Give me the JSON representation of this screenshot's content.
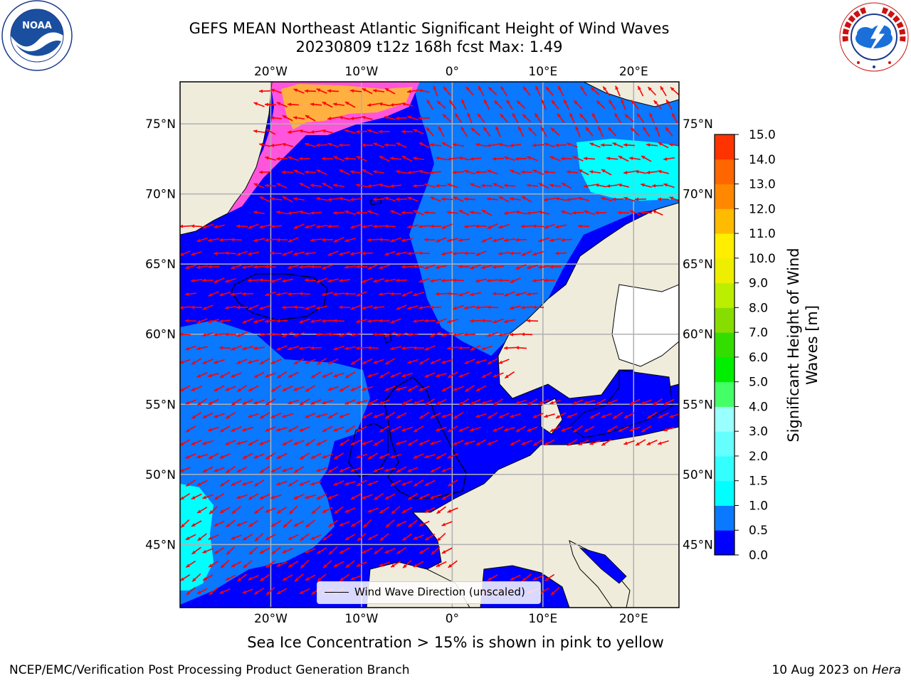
{
  "title": {
    "line1": "GEFS MEAN Northeast Atlantic Significant Height of Wind Waves",
    "line2": "20230809 t12z 168h fcst   Max: 1.49"
  },
  "logos": {
    "left": "NOAA",
    "left_ring": "NATIONAL OCEANIC AND ATMOSPHERIC ADMINISTRATION · U.S. DEPARTMENT OF COMMERCE",
    "right_ring": "NATIONAL WEATHER SERVICE"
  },
  "map": {
    "lon_range": [
      -30,
      25
    ],
    "lat_range": [
      40.5,
      78
    ],
    "lon_labels": [
      {
        "lon": -20,
        "text": "20°W"
      },
      {
        "lon": -10,
        "text": "10°W"
      },
      {
        "lon": 0,
        "text": "0°"
      },
      {
        "lon": 10,
        "text": "10°E"
      },
      {
        "lon": 20,
        "text": "20°E"
      }
    ],
    "lat_labels": [
      {
        "lat": 75,
        "text": "75°N"
      },
      {
        "lat": 70,
        "text": "70°N"
      },
      {
        "lat": 65,
        "text": "65°N"
      },
      {
        "lat": 60,
        "text": "60°N"
      },
      {
        "lat": 55,
        "text": "55°N"
      },
      {
        "lat": 50,
        "text": "50°N"
      },
      {
        "lat": 45,
        "text": "45°N"
      }
    ],
    "colors": {
      "ocean_low": "#0000ff",
      "ocean_mid": "#0a78ff",
      "ocean_cyan": "#00ffff",
      "land": "#efecdc",
      "ice_pink": "#ff55dd",
      "ice_orange": "#ffb040",
      "arrow": "#ff0000",
      "grid": "#b0b0b0"
    }
  },
  "legend": {
    "label": "Wind Wave Direction (unscaled)"
  },
  "colorbar": {
    "title_line1": "Significant Height of Wind",
    "title_line2": "Waves [m]",
    "ticks": [
      "0.0",
      "0.5",
      "1.0",
      "1.5",
      "2.0",
      "3.0",
      "4.0",
      "5.0",
      "6.0",
      "7.0",
      "8.0",
      "9.0",
      "10.0",
      "11.0",
      "12.0",
      "13.0",
      "14.0",
      "15.0"
    ],
    "colors": [
      "#0000ff",
      "#0a78ff",
      "#00ffff",
      "#33ffff",
      "#66ffff",
      "#99ffff",
      "#44ff66",
      "#00ee00",
      "#33dd00",
      "#88dd00",
      "#bbee00",
      "#eeee00",
      "#ffee00",
      "#ffbb00",
      "#ff8800",
      "#ff6600",
      "#ff3300",
      "#ff0000"
    ]
  },
  "caption": "Sea Ice Concentration > 15% is shown in pink to yellow",
  "footer": {
    "left": "NCEP/EMC/Verification Post Processing Product Generation Branch",
    "right_prefix": "10 Aug 2023 on ",
    "right_italic": "Hera"
  }
}
